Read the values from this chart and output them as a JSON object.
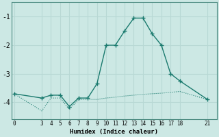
{
  "xlabel": "Humidex (Indice chaleur)",
  "bg_color": "#cce8e4",
  "grid_color": "#b8d8d4",
  "line_color": "#1a7a6e",
  "curve_x": [
    0,
    3,
    4,
    5,
    6,
    7,
    8,
    9,
    10,
    11,
    12,
    13,
    14,
    15,
    16,
    17,
    18,
    21
  ],
  "curve_y": [
    -3.7,
    -3.85,
    -3.75,
    -3.75,
    -4.15,
    -3.85,
    -3.85,
    -3.35,
    -2.0,
    -2.0,
    -1.5,
    -1.05,
    -1.05,
    -1.6,
    -2.0,
    -3.0,
    -3.25,
    -3.9
  ],
  "flat_x": [
    0,
    3,
    4,
    5,
    6,
    7,
    8,
    9,
    10,
    11,
    12,
    13,
    14,
    15,
    16,
    17,
    18,
    21
  ],
  "flat_y": [
    -3.7,
    -4.3,
    -3.85,
    -3.85,
    -4.25,
    -3.9,
    -3.9,
    -3.9,
    -3.85,
    -3.82,
    -3.78,
    -3.75,
    -3.72,
    -3.7,
    -3.68,
    -3.65,
    -3.62,
    -3.9
  ],
  "xlim": [
    -0.3,
    22.0
  ],
  "ylim": [
    -4.6,
    -0.5
  ],
  "xticks": [
    0,
    3,
    4,
    5,
    6,
    7,
    8,
    9,
    10,
    11,
    12,
    13,
    14,
    15,
    16,
    17,
    18,
    21
  ],
  "yticks": [
    -4,
    -3,
    -2,
    -1
  ],
  "ytick_labels": [
    "-4",
    "-3",
    "-2",
    "-1"
  ]
}
